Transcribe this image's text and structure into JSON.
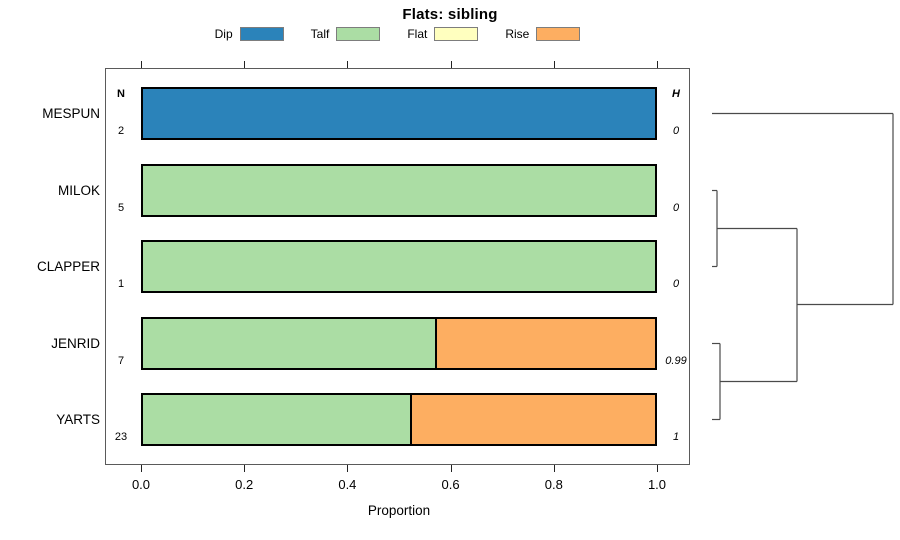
{
  "chart_data": {
    "type": "bar",
    "orientation": "horizontal_stacked",
    "title": "Flats: sibling",
    "xlabel": "Proportion",
    "xlim": [
      0,
      1
    ],
    "x_ticks": [
      0,
      0.2,
      0.4,
      0.6,
      0.8,
      1
    ],
    "x_tick_labels": [
      "0.0",
      "0.2",
      "0.4",
      "0.6",
      "0.8",
      "1.0"
    ],
    "grid": false,
    "legend_position": "top",
    "n_column_header": "N",
    "h_column_header": "H",
    "legend": [
      {
        "label": "Dip",
        "color": "#2B83BA"
      },
      {
        "label": "Talf",
        "color": "#ABDDA4"
      },
      {
        "label": "Flat",
        "color": "#FFFFBF"
      },
      {
        "label": "Rise",
        "color": "#FDAE61"
      }
    ],
    "series_colors": {
      "Dip": "#2B83BA",
      "Talf": "#ABDDA4",
      "Flat": "#FFFFBF",
      "Rise": "#FDAE61"
    },
    "rows": [
      {
        "label": "MESPUN",
        "n": "2",
        "h": "0",
        "segments": [
          {
            "series": "Dip",
            "value": 1.0
          }
        ]
      },
      {
        "label": "MILOK",
        "n": "5",
        "h": "0",
        "segments": [
          {
            "series": "Talf",
            "value": 1.0
          }
        ]
      },
      {
        "label": "CLAPPER",
        "n": "1",
        "h": "0",
        "segments": [
          {
            "series": "Talf",
            "value": 1.0
          }
        ]
      },
      {
        "label": "JENRID",
        "n": "7",
        "h": "0.99",
        "segments": [
          {
            "series": "Talf",
            "value": 0.571
          },
          {
            "series": "Rise",
            "value": 0.429
          }
        ]
      },
      {
        "label": "YARTS",
        "n": "23",
        "h": "1",
        "segments": [
          {
            "series": "Talf",
            "value": 0.522
          },
          {
            "series": "Rise",
            "value": 0.478
          }
        ]
      }
    ],
    "dendrogram": {
      "line_color": "#4a4a4a",
      "segments": [
        [
          712,
          113.5,
          893,
          113.5
        ],
        [
          893,
          113.5,
          893,
          304.5
        ],
        [
          797,
          304.5,
          893,
          304.5
        ],
        [
          717,
          190.5,
          717,
          266.5
        ],
        [
          712,
          190.5,
          717,
          190.5
        ],
        [
          712,
          266.5,
          717,
          266.5
        ],
        [
          717,
          228.5,
          797,
          228.5
        ],
        [
          720,
          343.5,
          720,
          419.5
        ],
        [
          712,
          343.5,
          720,
          343.5
        ],
        [
          712,
          419.5,
          720,
          419.5
        ],
        [
          720,
          381.5,
          797,
          381.5
        ],
        [
          797,
          228.5,
          797,
          381.5
        ]
      ]
    }
  }
}
